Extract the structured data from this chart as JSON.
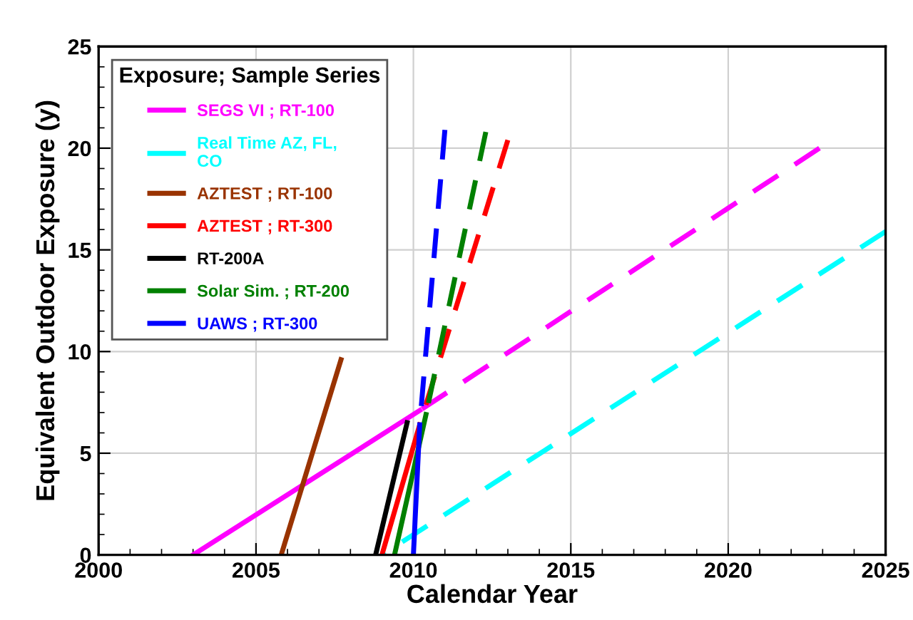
{
  "chart_data": {
    "type": "line",
    "xlabel": "Calendar Year",
    "ylabel": "Equivalent Outdoor Exposure (y)",
    "legend_title": "Exposure; Sample Series",
    "legend": "top left",
    "grid": true,
    "marker": "none",
    "xlim": [
      2000,
      2025
    ],
    "xticks": [
      2000,
      2005,
      2010,
      2015,
      2020,
      2025
    ],
    "ylim": [
      0,
      25
    ],
    "yticks": [
      0,
      5,
      10,
      15,
      20,
      25
    ],
    "series": [
      {
        "name": "SEGS VI ; RT-100",
        "color": "#ff00ff",
        "x": [
          2003.0,
          2010.2
        ],
        "values": [
          0,
          7.1
        ],
        "line_style": "solid"
      },
      {
        "color": "#ff00ff",
        "x": [
          2010.2,
          2022.9
        ],
        "values": [
          7.1,
          20
        ],
        "line_style": "dashed"
      },
      {
        "name": "Real Time AZ, FL,\nCO",
        "color": "#00ffff",
        "x": [
          2009.0,
          2025
        ],
        "values": [
          0,
          15.9
        ],
        "line_style": "dashed"
      },
      {
        "name": "AZTEST ; RT-100",
        "color": "#993300",
        "x": [
          2005.8,
          2007.7
        ],
        "values": [
          0,
          9.6
        ],
        "line_style": "solid"
      },
      {
        "name": "AZTEST ; RT-300",
        "color": "#ff0000",
        "x": [
          2009.0,
          2010.2
        ],
        "values": [
          0,
          6.4
        ],
        "line_style": "solid"
      },
      {
        "color": "#ff0000",
        "x": [
          2010.2,
          2013.0
        ],
        "values": [
          6.4,
          20.4
        ],
        "line_style": "dashed"
      },
      {
        "name": "RT-200A",
        "color": "#000000",
        "x": [
          2008.8,
          2009.8
        ],
        "values": [
          0,
          6.5
        ],
        "line_style": "solid"
      },
      {
        "name": "Solar Sim. ; RT-200",
        "color": "#008000",
        "x": [
          2009.4,
          2010.4
        ],
        "values": [
          0,
          6.9
        ],
        "line_style": "solid"
      },
      {
        "color": "#008000",
        "x": [
          2010.4,
          2012.3
        ],
        "values": [
          6.9,
          20.8
        ],
        "line_style": "dashed"
      },
      {
        "name": "UAWS ; RT-300",
        "color": "#0000ff",
        "x": [
          2010.0,
          2010.2
        ],
        "values": [
          0,
          6.4
        ],
        "line_style": "solid"
      },
      {
        "color": "#0000ff",
        "x": [
          2010.2,
          2011.0
        ],
        "values": [
          6.4,
          20.9
        ],
        "line_style": "dashed"
      }
    ]
  }
}
